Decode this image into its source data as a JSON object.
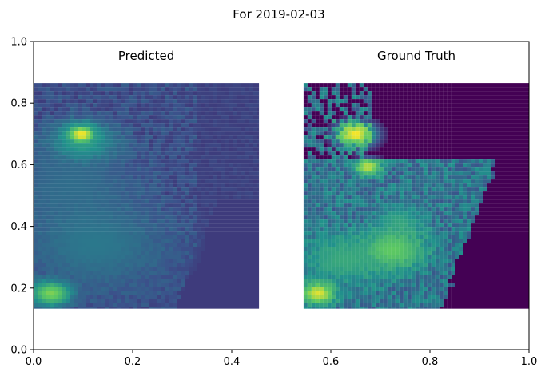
{
  "chart_data": {
    "type": "heatmap",
    "title": "For 2019-02-03",
    "xlim": [
      0.0,
      1.0
    ],
    "ylim": [
      0.0,
      1.0
    ],
    "x_ticks": [
      "0.0",
      "0.2",
      "0.4",
      "0.6",
      "0.8",
      "1.0"
    ],
    "y_ticks": [
      "0.0",
      "0.2",
      "0.4",
      "0.6",
      "0.8",
      "1.0"
    ],
    "grid": false,
    "colormap": "viridis",
    "colors": {
      "background": "#440154",
      "low": "#472d7b",
      "mid": "#21918c",
      "high": "#bddf26",
      "peak": "#fde725"
    },
    "panels": [
      {
        "label": "Predicted",
        "extent": {
          "x": [
            0.0,
            0.455
          ],
          "y": [
            0.133,
            0.865
          ]
        },
        "base_color": "#433e85",
        "hotspots": [
          {
            "x": 0.092,
            "y": 0.705,
            "r": 0.022,
            "level": 1.0
          },
          {
            "x": 0.095,
            "y": 0.68,
            "r": 0.05,
            "level": 0.55
          },
          {
            "x": 0.03,
            "y": 0.19,
            "r": 0.03,
            "level": 0.8
          },
          {
            "x": 0.07,
            "y": 0.55,
            "r": 0.09,
            "level": 0.35
          },
          {
            "x": 0.12,
            "y": 0.35,
            "r": 0.1,
            "level": 0.4
          }
        ]
      },
      {
        "label": "Ground Truth",
        "extent": {
          "x": [
            0.545,
            1.0
          ],
          "y": [
            0.133,
            0.865
          ]
        },
        "base_color": "#2c728e",
        "hotspots": [
          {
            "x": 0.645,
            "y": 0.705,
            "r": 0.03,
            "level": 1.0
          },
          {
            "x": 0.67,
            "y": 0.6,
            "r": 0.02,
            "level": 0.9
          },
          {
            "x": 0.57,
            "y": 0.19,
            "r": 0.025,
            "level": 0.95
          },
          {
            "x": 0.735,
            "y": 0.43,
            "r": 0.035,
            "level": 0.55
          },
          {
            "x": 0.72,
            "y": 0.33,
            "r": 0.05,
            "level": 0.75
          },
          {
            "x": 0.62,
            "y": 0.3,
            "r": 0.06,
            "level": 0.6
          }
        ]
      }
    ]
  }
}
